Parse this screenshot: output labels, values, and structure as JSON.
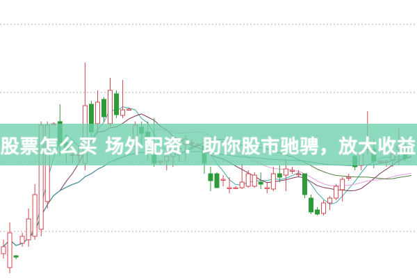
{
  "banner": {
    "title": "股票怎么买 场外配资：助你股市驰骋，放大收益"
  },
  "chart_data": {
    "type": "candlestick",
    "title": "",
    "xlabel": "",
    "ylabel": "",
    "grid": "horizontal-dotted",
    "ylim": [
      0,
      40
    ],
    "up_color": "#d0454f",
    "down_color": "#2e9a3a",
    "moving_averages": [
      {
        "window": 5,
        "color": "#3aa7a8"
      },
      {
        "window": 10,
        "color": "#7a3458"
      },
      {
        "window": 20,
        "color": "#e59be0"
      },
      {
        "window": 30,
        "color": "#4d7d3c"
      },
      {
        "window": 60,
        "color": "#2f8fa0"
      }
    ],
    "candles_ohlc": [
      [
        3.5,
        5.5,
        2.8,
        4.5
      ],
      [
        1.5,
        8.0,
        0.7,
        6.5
      ],
      [
        3.2,
        3.3,
        2.7,
        3.0
      ],
      [
        5.0,
        6.5,
        4.5,
        6.0
      ],
      [
        5.5,
        10,
        4.5,
        8.5
      ],
      [
        6.0,
        13.5,
        5.5,
        12
      ],
      [
        7.0,
        22.5,
        6.0,
        22
      ],
      [
        11,
        22.5,
        10,
        22
      ],
      [
        22.2,
        22.4,
        22.0,
        22.2
      ],
      [
        22.5,
        25,
        17.5,
        19
      ],
      [
        19.5,
        20.5,
        16.5,
        18
      ],
      [
        17.8,
        19,
        16.5,
        17.8
      ],
      [
        17.8,
        19,
        16.5,
        17.8
      ],
      [
        16.5,
        31,
        15.5,
        24.8
      ],
      [
        25,
        25.5,
        20,
        21
      ],
      [
        22.2,
        27,
        21,
        25.3
      ],
      [
        25.7,
        26,
        22.5,
        23.2
      ],
      [
        22.2,
        28.8,
        21.8,
        27
      ],
      [
        26.5,
        27,
        23,
        23.5
      ],
      [
        23.4,
        28.5,
        23,
        24.2
      ],
      [
        24.3,
        24.5,
        24.1,
        24.3
      ],
      [
        19,
        22.5,
        17.7,
        22
      ],
      [
        21.7,
        22.5,
        19,
        20.8
      ],
      [
        21,
        22.5,
        17,
        20.2
      ],
      [
        18.5,
        23,
        16,
        16.5
      ],
      [
        16.8,
        16.9,
        16.3,
        16.8
      ],
      [
        16.8,
        19,
        15.5,
        17.5
      ],
      [
        17.5,
        20,
        16,
        18.5
      ],
      [
        18.7,
        20,
        16.7,
        18.7
      ],
      [
        19.2,
        20.5,
        17,
        20
      ],
      [
        19.5,
        20,
        18.5,
        19.5
      ],
      [
        19.2,
        19.4,
        19.0,
        19.2
      ],
      [
        19,
        20,
        15,
        16.5
      ],
      [
        15,
        16,
        12.5,
        14
      ],
      [
        15,
        15.2,
        13,
        13
      ],
      [
        14.2,
        14.8,
        13.2,
        14.2
      ],
      [
        13.0,
        14.5,
        12.2,
        13.0
      ],
      [
        13.0,
        13.2,
        12.8,
        13.0
      ],
      [
        13,
        16.4,
        12.8,
        13.8
      ],
      [
        13.2,
        15.5,
        13,
        15
      ],
      [
        13.2,
        15.2,
        13,
        14.8
      ],
      [
        13.8,
        15.2,
        12.8,
        13.5
      ],
      [
        13,
        13.8,
        12.2,
        13
      ],
      [
        12.8,
        16,
        12.5,
        15
      ],
      [
        15,
        16.2,
        13.8,
        14.5
      ],
      [
        14.8,
        17.1,
        12.5,
        15.7
      ],
      [
        15.5,
        16,
        15,
        15.5
      ],
      [
        15,
        15.5,
        14.5,
        15
      ],
      [
        15,
        15,
        11.5,
        12
      ],
      [
        11.5,
        12,
        9.2,
        9.5
      ],
      [
        9.8,
        10.2,
        9,
        9.2
      ],
      [
        9.3,
        11.2,
        9,
        10.8
      ],
      [
        10.8,
        11.8,
        9.8,
        11.5
      ],
      [
        11.5,
        13.5,
        11.2,
        13.2
      ],
      [
        12.7,
        14.5,
        11,
        14.2
      ],
      [
        14.5,
        15,
        14,
        14.5
      ],
      [
        17.5,
        18.5,
        15.5,
        16
      ],
      [
        16.2,
        18.5,
        15.5,
        17.8
      ],
      [
        18.5,
        24,
        17.8,
        18.8
      ],
      [
        18.5,
        20,
        15.8,
        16.8
      ],
      [
        16.8,
        17,
        16.6,
        16.8
      ],
      [
        16.8,
        17,
        16,
        16.8
      ],
      [
        17,
        18,
        16,
        17.8
      ],
      [
        18.5,
        21.5,
        16.3,
        19
      ],
      [
        19,
        19.5,
        16.8,
        17.2
      ],
      [
        19,
        19.2,
        18.8,
        19
      ]
    ]
  }
}
